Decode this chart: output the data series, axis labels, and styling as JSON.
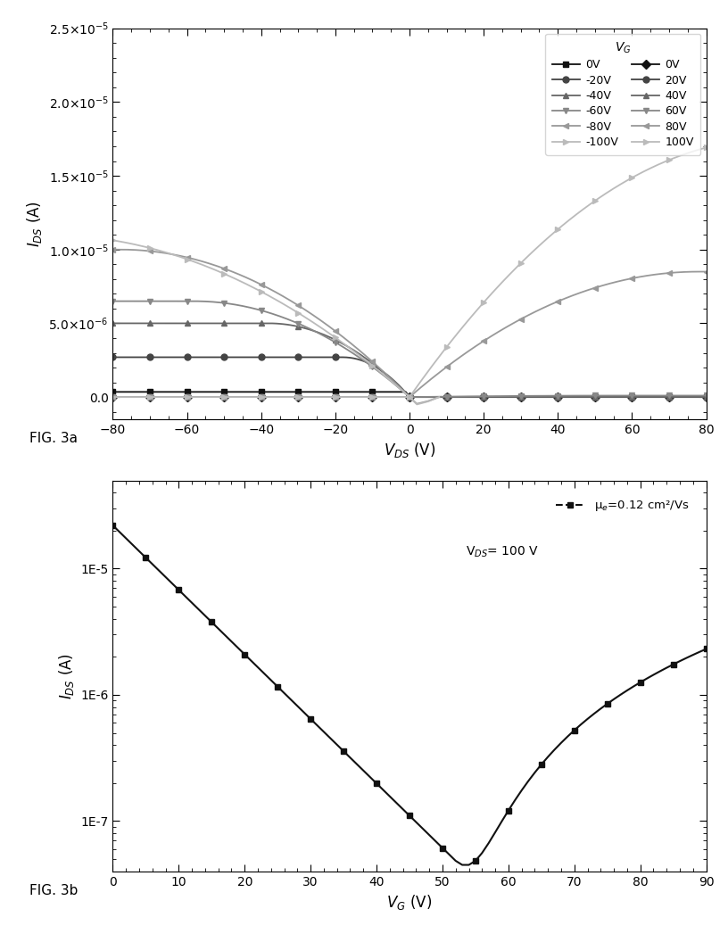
{
  "fig3a": {
    "xlabel": "V$_{DS}$ (V)",
    "ylabel": "I$_{DS}$ (A)",
    "xlim": [
      -80,
      80
    ],
    "ylim": [
      -1.5e-06,
      2.5e-05
    ],
    "yticks": [
      0.0,
      5e-06,
      1e-05,
      1.5e-05,
      2e-05,
      2.5e-05
    ],
    "xticks": [
      -80,
      -60,
      -40,
      -20,
      0,
      20,
      40,
      60,
      80
    ],
    "legend_title": "V$_G$",
    "fig_label": "FIG. 3a",
    "p_curves": [
      {
        "vg_abs": 0,
        "isat": 3.5e-07,
        "color": "#111111",
        "marker": "s",
        "label": "0V",
        "ms": 5
      },
      {
        "vg_abs": 20,
        "isat": 2.7e-06,
        "color": "#444444",
        "marker": "o",
        "label": "-20V",
        "ms": 5
      },
      {
        "vg_abs": 40,
        "isat": 5e-06,
        "color": "#666666",
        "marker": "^",
        "label": "-40V",
        "ms": 5
      },
      {
        "vg_abs": 60,
        "isat": 6.5e-06,
        "color": "#888888",
        "marker": "v",
        "label": "-60V",
        "ms": 5
      },
      {
        "vg_abs": 80,
        "isat": 1e-05,
        "color": "#999999",
        "marker": "<",
        "label": "-80V",
        "ms": 5
      },
      {
        "vg_abs": 100,
        "isat": 1.1e-05,
        "color": "#bbbbbb",
        "marker": ">",
        "label": "-100V",
        "ms": 5
      }
    ],
    "n_curves": [
      {
        "vg": 0,
        "isat": 0,
        "color": "#111111",
        "marker": "D",
        "label": "0V",
        "ms": 5
      },
      {
        "vg": 20,
        "isat": 0,
        "color": "#444444",
        "marker": "o",
        "label": "20V",
        "ms": 5
      },
      {
        "vg": 40,
        "isat": 0,
        "color": "#666666",
        "marker": "^",
        "label": "40V",
        "ms": 5
      },
      {
        "vg": 60,
        "isat": 1e-07,
        "color": "#888888",
        "marker": "v",
        "label": "60V",
        "ms": 5
      },
      {
        "vg": 80,
        "isat": 8.5e-06,
        "color": "#999999",
        "marker": "<",
        "label": "80V",
        "ms": 5
      },
      {
        "vg": 100,
        "isat": 1.75e-05,
        "color": "#bbbbbb",
        "marker": ">",
        "label": "100V",
        "ms": 5
      }
    ]
  },
  "fig3b": {
    "xlabel": "V$_G$ (V)",
    "ylabel": "I$_{DS}$ (A)",
    "xlim": [
      0,
      90
    ],
    "ylim": [
      4e-08,
      5e-05
    ],
    "xticks": [
      0,
      10,
      20,
      30,
      40,
      50,
      60,
      70,
      80,
      90
    ],
    "yticks": [
      1e-07,
      1e-06,
      1e-05
    ],
    "ytick_labels": [
      "1E-7",
      "1E-6",
      "1E-5"
    ],
    "fig_label": "FIG. 3b",
    "color": "#111111",
    "marker": "s",
    "lw": 1.5,
    "ms": 5,
    "legend_text1": "μ$_e$=0.12 cm²/Vs",
    "legend_text2": "V$_{DS}$= 100 V",
    "I_p0": 2.2e-05,
    "vp_scale": 8.5,
    "vth_n": 52,
    "I_n_factor": 1.6e-09,
    "I_min": 4.5e-08
  },
  "figsize": [
    8.16,
    10.56
  ],
  "dpi": 100
}
